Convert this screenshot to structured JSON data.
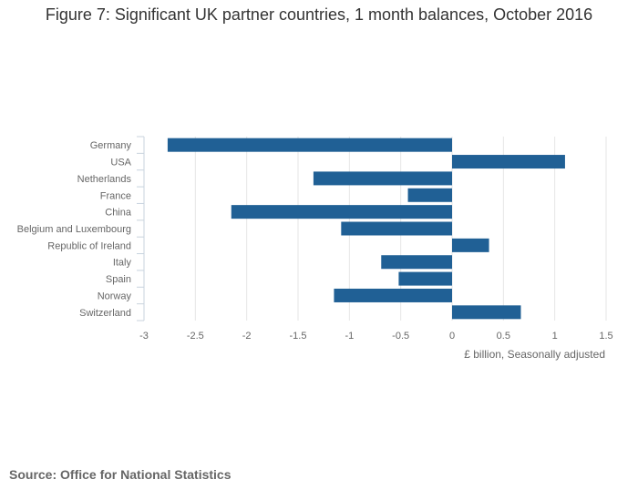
{
  "title": "Figure 7: Significant UK partner countries, 1 month balances, October 2016",
  "source": "Source: Office for National Statistics",
  "colors": {
    "bar": "#206095",
    "grid": "#e6e6e6",
    "axis_text": "#666666"
  },
  "chart_data": {
    "type": "bar",
    "orientation": "horizontal",
    "title": "Figure 7: Significant UK partner countries, 1 month balances, October 2016",
    "xlabel": "£ billion, Seasonally adjusted",
    "ylabel": "",
    "xlim": [
      -3,
      1.5
    ],
    "xticks": [
      "-3",
      "-2.5",
      "-2",
      "-1.5",
      "-1",
      "-0.5",
      "0",
      "0.5",
      "1",
      "1.5"
    ],
    "grid": true,
    "categories": [
      "Germany",
      "USA",
      "Netherlands",
      "France",
      "China",
      "Belgium and Luxembourg",
      "Republic of Ireland",
      "Italy",
      "Spain",
      "Norway",
      "Switzerland"
    ],
    "values": [
      -2.77,
      1.1,
      -1.35,
      -0.43,
      -2.15,
      -1.08,
      0.36,
      -0.69,
      -0.52,
      -1.15,
      0.67
    ]
  }
}
